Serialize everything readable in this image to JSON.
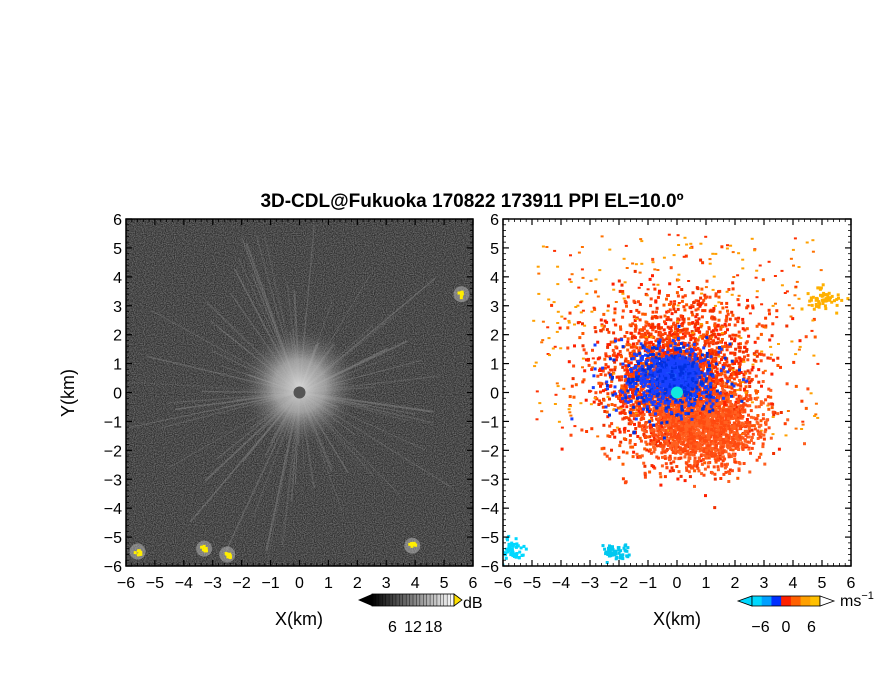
{
  "title": "3D-CDL@Fukuoka 170822 173911 PPI EL=10.0º",
  "chart_data": [
    {
      "type": "heatmap",
      "panel": "left",
      "variable_unit": "dB",
      "xlabel": "X(km)",
      "ylabel": "Y(km)",
      "xlim": [
        -6,
        6
      ],
      "ylim": [
        -6,
        6
      ],
      "x_ticks": [
        "−6",
        "−5",
        "−4",
        "−3",
        "−2",
        "−1",
        "0",
        "1",
        "2",
        "3",
        "4",
        "5",
        "6"
      ],
      "y_ticks": [
        "6",
        "5",
        "4",
        "3",
        "2",
        "1",
        "0",
        "−1",
        "−2",
        "−3",
        "−4",
        "−5",
        "−6"
      ],
      "colorbar": {
        "label": "dB",
        "ticks": [
          "6",
          "12",
          "18"
        ],
        "range": [
          0,
          24
        ],
        "colormap": "grayscale"
      },
      "features": [
        {
          "name": "bright-center",
          "x": 0,
          "y": 0.2,
          "radius_km": 2.5
        },
        {
          "name": "dark-hub",
          "x": 0,
          "y": 0,
          "radius_km": 0.2
        },
        {
          "name": "hotspot",
          "x": -5.6,
          "y": -5.5,
          "color": "#ffee00"
        },
        {
          "name": "hotspot",
          "x": -3.3,
          "y": -5.4,
          "color": "#ffee00"
        },
        {
          "name": "hotspot",
          "x": -2.5,
          "y": -5.6,
          "color": "#ffee00"
        },
        {
          "name": "hotspot",
          "x": 3.9,
          "y": -5.3,
          "color": "#ffee00"
        },
        {
          "name": "hotspot",
          "x": 5.6,
          "y": 3.4,
          "color": "#ffee00"
        }
      ]
    },
    {
      "type": "scatter",
      "panel": "right",
      "variable_unit": "ms⁻¹",
      "xlabel": "X(km)",
      "xlim": [
        -6,
        6
      ],
      "ylim": [
        -6,
        6
      ],
      "x_ticks": [
        "−6",
        "−5",
        "−4",
        "−3",
        "−2",
        "−1",
        "0",
        "1",
        "2",
        "3",
        "4",
        "5",
        "6"
      ],
      "y_ticks": [
        "6",
        "5",
        "4",
        "3",
        "2",
        "1",
        "0",
        "−1",
        "−2",
        "−3",
        "−4",
        "−5",
        "−6"
      ],
      "colorbar": {
        "label": "ms⁻¹",
        "ticks": [
          "−6",
          "0",
          "6"
        ],
        "range": [
          -8,
          8
        ],
        "colors": [
          "#00d8ff",
          "#00a0ff",
          "#0030ff",
          "#ff2000",
          "#ff6000",
          "#ffa000",
          "#ffc000"
        ]
      },
      "regions": [
        {
          "name": "negative-core",
          "x": 0,
          "y": 0.6,
          "velocity": -3,
          "color": "#1840ff"
        },
        {
          "name": "positive-south",
          "x": 0.9,
          "y": -1.2,
          "velocity": 3,
          "color": "#ff4a10"
        },
        {
          "name": "positive-north",
          "x": -0.5,
          "y": 2.2,
          "velocity": 4,
          "color": "#ff5a00"
        },
        {
          "name": "cluster-se",
          "x": 5,
          "y": 3.3,
          "velocity": 6,
          "color": "#ffb000"
        },
        {
          "name": "cluster-sw",
          "x": -2.2,
          "y": -5.5,
          "velocity": -6,
          "color": "#00c8f0"
        },
        {
          "name": "cluster-w",
          "x": -5.8,
          "y": -5.4,
          "velocity": -7,
          "color": "#00d8ff"
        }
      ],
      "center_marker": {
        "x": 0,
        "y": 0,
        "color": "#10e8e0"
      }
    }
  ]
}
